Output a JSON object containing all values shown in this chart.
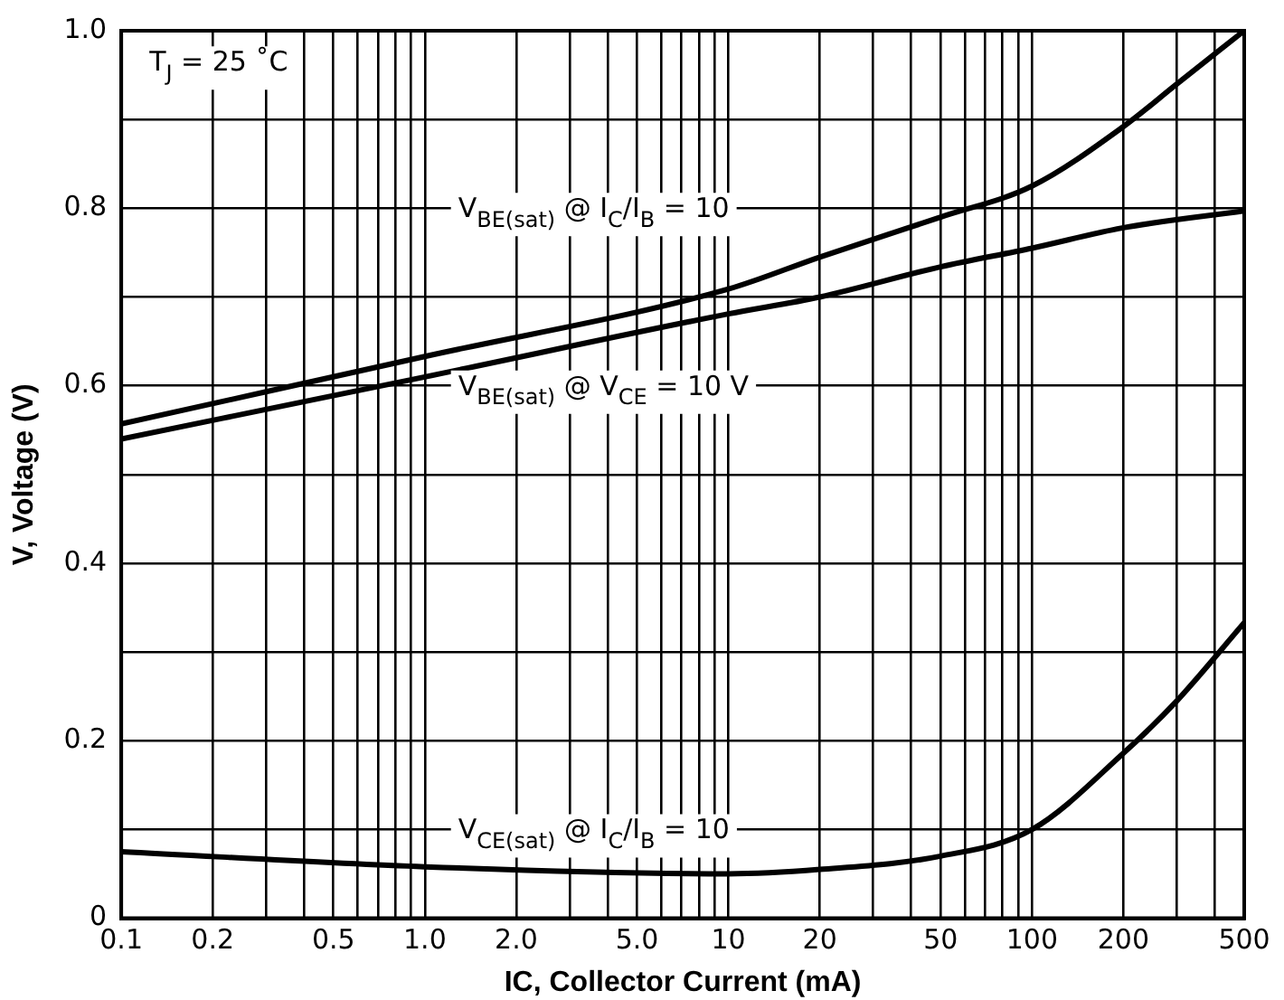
{
  "chart_data": {
    "type": "line",
    "xlabel": "IC, Collector Current (mA)",
    "ylabel": "V, Voltage (V)",
    "log": "x",
    "xlim": [
      0.1,
      500
    ],
    "ylim": [
      0,
      1.0
    ],
    "xticks": [
      0.1,
      0.2,
      {
        "value": 0.3,
        "label": null
      },
      {
        "value": 0.4,
        "label": null
      },
      0.5,
      {
        "value": 0.6,
        "label": null
      },
      {
        "value": 0.7,
        "label": null
      },
      {
        "value": 0.8,
        "label": null
      },
      {
        "value": 0.9,
        "label": null
      },
      {
        "value": 1,
        "label": "1.0"
      },
      {
        "value": 2,
        "label": "2.0"
      },
      {
        "value": 3,
        "label": null
      },
      {
        "value": 4,
        "label": null
      },
      {
        "value": 5,
        "label": "5.0"
      },
      {
        "value": 6,
        "label": null
      },
      {
        "value": 7,
        "label": null
      },
      {
        "value": 8,
        "label": null
      },
      {
        "value": 9,
        "label": null
      },
      10,
      20,
      {
        "value": 30,
        "label": null
      },
      {
        "value": 40,
        "label": null
      },
      50,
      {
        "value": 60,
        "label": null
      },
      {
        "value": 70,
        "label": null
      },
      {
        "value": 80,
        "label": null
      },
      {
        "value": 90,
        "label": null
      },
      100,
      200,
      {
        "value": 300,
        "label": null
      },
      {
        "value": 400,
        "label": null
      },
      500
    ],
    "yticks": [
      0,
      {
        "value": 0.1,
        "label": null
      },
      0.2,
      {
        "value": 0.3,
        "label": null
      },
      0.4,
      {
        "value": 0.5,
        "label": null
      },
      0.6,
      {
        "value": 0.7,
        "label": null
      },
      0.8,
      {
        "value": 0.9,
        "label": null
      },
      {
        "value": 1.0,
        "label": "1.0"
      }
    ],
    "grid": true,
    "legend": false,
    "marker": "none",
    "line_style": "solid",
    "series": [
      {
        "color": "#000000",
        "x": [
          0.1,
          1,
          10,
          20,
          50,
          100,
          200,
          300,
          500
        ],
        "values": [
          0.557,
          0.633,
          0.709,
          0.745,
          0.79,
          0.825,
          0.892,
          0.94,
          1.0
        ]
      },
      {
        "color": "#000000",
        "x": [
          0.1,
          1,
          10,
          20,
          50,
          100,
          200,
          500
        ],
        "values": [
          0.54,
          0.61,
          0.681,
          0.7,
          0.734,
          0.755,
          0.778,
          0.797
        ]
      },
      {
        "color": "#000000",
        "x": [
          0.1,
          1,
          10,
          20,
          50,
          100,
          200,
          300,
          500
        ],
        "values": [
          0.075,
          0.058,
          0.05,
          0.055,
          0.07,
          0.1,
          0.186,
          0.245,
          0.333
        ]
      }
    ],
    "annotations": [
      "T$_{J}$ = 25 ˚C",
      "V$_{BE(sat)}$ @ I$_{C}$/I$_{B}$ = 10",
      "V$_{BE(sat)}$ @ V$_{CE}$ = 10 V",
      "V$_{CE(sat)}$ @ I$_{C}$/I$_{B}$ = 10"
    ]
  }
}
